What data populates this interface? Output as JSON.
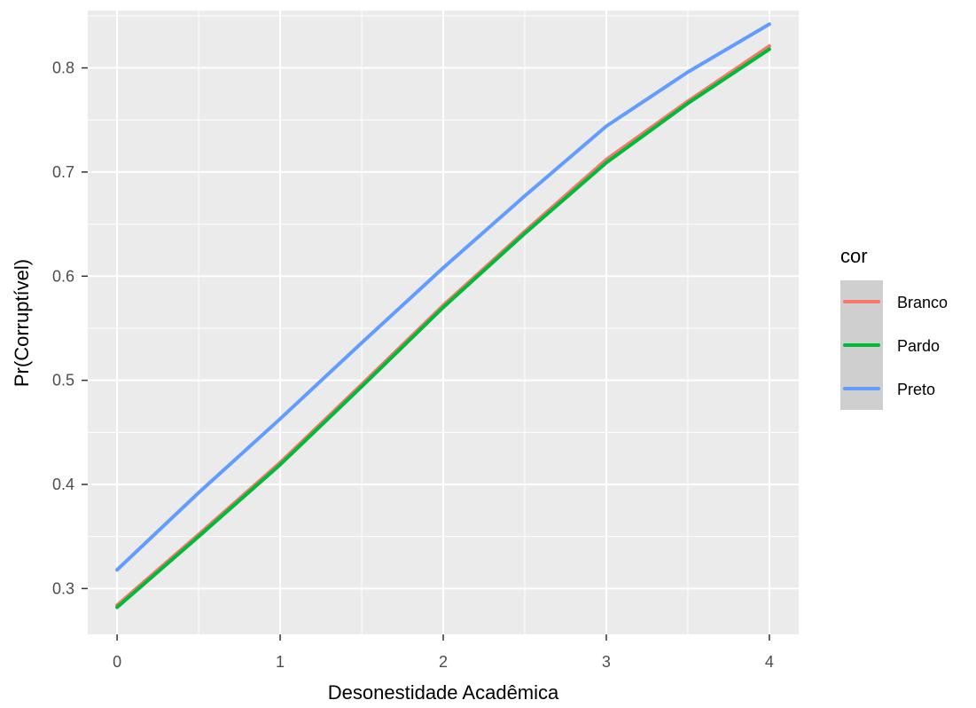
{
  "chart_data": {
    "type": "line",
    "xlabel": "Desonestidade Acadêmica",
    "ylabel": "Pr(Corruptível)",
    "xlim": [
      -0.18,
      4.18
    ],
    "ylim": [
      0.256,
      0.855
    ],
    "x_ticks": [
      0,
      1,
      2,
      3,
      4
    ],
    "y_ticks": [
      0.3,
      0.4,
      0.5,
      0.6,
      0.7,
      0.8
    ],
    "x_tick_labels": [
      "0",
      "1",
      "2",
      "3",
      "4"
    ],
    "y_tick_labels": [
      "0.3",
      "0.4",
      "0.5",
      "0.6",
      "0.7",
      "0.8"
    ],
    "grid": true,
    "legend": {
      "title": "cor",
      "position": "right"
    },
    "series": [
      {
        "name": "Branco",
        "color": "#F8766D",
        "x": [
          0,
          0.5,
          1,
          1.5,
          2,
          2.5,
          3,
          3.5,
          4
        ],
        "values": [
          0.284,
          0.352,
          0.421,
          0.496,
          0.572,
          0.643,
          0.712,
          0.768,
          0.821
        ]
      },
      {
        "name": "Pardo",
        "color": "#00BA38",
        "x": [
          0,
          0.5,
          1,
          1.5,
          2,
          2.5,
          3,
          3.5,
          4
        ],
        "values": [
          0.282,
          0.35,
          0.419,
          0.494,
          0.57,
          0.641,
          0.709,
          0.766,
          0.818
        ]
      },
      {
        "name": "Preto",
        "color": "#619CFF",
        "x": [
          0,
          0.5,
          1,
          1.5,
          2,
          2.5,
          3,
          3.5,
          4
        ],
        "values": [
          0.318,
          0.392,
          0.463,
          0.536,
          0.608,
          0.677,
          0.744,
          0.796,
          0.842
        ]
      }
    ]
  }
}
